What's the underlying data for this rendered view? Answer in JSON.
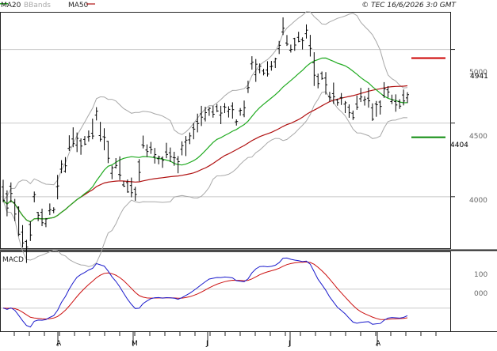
{
  "legend": [
    {
      "label": "MA20",
      "color": "#1faa1f"
    },
    {
      "label": "BBands",
      "color": "#a8a8a8"
    },
    {
      "label": "MA50",
      "color": "#b01010"
    }
  ],
  "copyright": "© TEC 16/6/2026 3:0 GMT",
  "chart_data": [
    {
      "type": "line",
      "title": "",
      "x_months": [
        "A",
        "M",
        "J",
        "J",
        "A"
      ],
      "y_ticks": [
        4000,
        4500,
        5000
      ],
      "y_tick_labels": [
        "4000",
        "4500",
        "5000"
      ],
      "ylim": [
        3650,
        5250
      ],
      "grid": true,
      "markers": [
        {
          "label": "4941",
          "value": 4941,
          "color": "#cc0000"
        },
        {
          "label": "4404",
          "value": 4404,
          "color": "#0a8a0a"
        }
      ],
      "price_bars": [
        [
          4066,
          4115,
          3963,
          3976
        ],
        [
          4020,
          4043,
          3867,
          3923
        ],
        [
          4071,
          4097,
          3961,
          4022
        ],
        [
          3960,
          3985,
          3834,
          3882
        ],
        [
          3929,
          3934,
          3732,
          3745
        ],
        [
          3759,
          3807,
          3655,
          3686
        ],
        [
          3696,
          3707,
          3550,
          3659
        ],
        [
          3811,
          3833,
          3699,
          3740
        ],
        [
          4000,
          4035,
          3962,
          4014
        ],
        [
          3893,
          3897,
          3834,
          3874
        ],
        [
          3894,
          3919,
          3800,
          3823
        ],
        [
          3817,
          3855,
          3793,
          3849
        ],
        [
          3904,
          3954,
          3875,
          3912
        ],
        [
          3905,
          3928,
          3888,
          3913
        ],
        [
          4068,
          4148,
          3982,
          4073
        ],
        [
          4187,
          4248,
          4159,
          4221
        ],
        [
          4173,
          4269,
          4163,
          4210
        ],
        [
          4328,
          4417,
          4311,
          4337
        ],
        [
          4392,
          4471,
          4336,
          4360
        ],
        [
          4350,
          4436,
          4303,
          4396
        ],
        [
          4380,
          4396,
          4285,
          4344
        ],
        [
          4389,
          4412,
          4350,
          4357
        ],
        [
          4406,
          4450,
          4374,
          4410
        ],
        [
          4431,
          4530,
          4390,
          4412
        ],
        [
          4554,
          4608,
          4518,
          4581
        ],
        [
          4415,
          4508,
          4374,
          4390
        ],
        [
          4407,
          4465,
          4315,
          4403
        ],
        [
          4376,
          4379,
          4228,
          4261
        ],
        [
          4159,
          4212,
          4119,
          4196
        ],
        [
          4200,
          4262,
          4191,
          4212
        ],
        [
          4151,
          4274,
          4113,
          4146
        ],
        [
          4080,
          4107,
          4067,
          4071
        ],
        [
          4096,
          4117,
          4027,
          4032
        ],
        [
          4076,
          4130,
          3996,
          4027
        ],
        [
          4051,
          4067,
          3972,
          4015
        ],
        [
          4236,
          4255,
          4105,
          4165
        ],
        [
          4352,
          4415,
          4328,
          4345
        ],
        [
          4317,
          4355,
          4270,
          4307
        ],
        [
          4336,
          4372,
          4291,
          4319
        ],
        [
          4272,
          4331,
          4225,
          4286
        ],
        [
          4258,
          4279,
          4220,
          4269
        ],
        [
          4262,
          4274,
          4196,
          4247
        ],
        [
          4304,
          4366,
          4261,
          4287
        ],
        [
          4298,
          4334,
          4235,
          4272
        ],
        [
          4266,
          4305,
          4210,
          4264
        ],
        [
          4256,
          4276,
          4159,
          4238
        ],
        [
          4322,
          4376,
          4281,
          4347
        ],
        [
          4371,
          4412,
          4276,
          4384
        ],
        [
          4386,
          4436,
          4357,
          4413
        ],
        [
          4468,
          4501,
          4390,
          4459
        ],
        [
          4512,
          4564,
          4437,
          4497
        ],
        [
          4563,
          4617,
          4480,
          4540
        ],
        [
          4528,
          4611,
          4511,
          4571
        ],
        [
          4590,
          4609,
          4549,
          4600
        ],
        [
          4575,
          4617,
          4537,
          4560
        ],
        [
          4612,
          4630,
          4575,
          4582
        ],
        [
          4554,
          4617,
          4493,
          4568
        ],
        [
          4612,
          4636,
          4568,
          4608
        ],
        [
          4580,
          4614,
          4538,
          4593
        ],
        [
          4616,
          4641,
          4530,
          4591
        ],
        [
          4508,
          4525,
          4483,
          4511
        ],
        [
          4583,
          4602,
          4550,
          4587
        ],
        [
          4557,
          4653,
          4540,
          4604
        ],
        [
          4736,
          4788,
          4704,
          4741
        ],
        [
          4902,
          4954,
          4863,
          4913
        ],
        [
          4828,
          4935,
          4780,
          4900
        ],
        [
          4864,
          4905,
          4838,
          4886
        ],
        [
          4854,
          4869,
          4824,
          4839
        ],
        [
          4860,
          4920,
          4816,
          4833
        ],
        [
          4883,
          4922,
          4856,
          4886
        ],
        [
          4916,
          4944,
          4874,
          4936
        ],
        [
          5005,
          5058,
          4969,
          5028
        ],
        [
          5119,
          5218,
          5098,
          5145
        ],
        [
          5044,
          5098,
          5024,
          5036
        ],
        [
          4995,
          5033,
          4979,
          5000
        ],
        [
          5074,
          5079,
          4991,
          5030
        ],
        [
          5082,
          5120,
          5049,
          5055
        ],
        [
          5067,
          5082,
          5000,
          5059
        ],
        [
          5107,
          5170,
          5074,
          5131
        ],
        [
          5026,
          5099,
          4952,
          5007
        ],
        [
          4909,
          4981,
          4752,
          4825
        ],
        [
          4817,
          4836,
          4736,
          4768
        ],
        [
          4837,
          4850,
          4794,
          4803
        ],
        [
          4806,
          4846,
          4694,
          4760
        ],
        [
          4679,
          4712,
          4646,
          4675
        ],
        [
          4700,
          4775,
          4630,
          4679
        ],
        [
          4657,
          4666,
          4618,
          4639
        ],
        [
          4674,
          4704,
          4623,
          4671
        ],
        [
          4629,
          4650,
          4568,
          4638
        ],
        [
          4608,
          4627,
          4536,
          4570
        ],
        [
          4567,
          4585,
          4521,
          4537
        ],
        [
          4629,
          4687,
          4590,
          4608
        ],
        [
          4665,
          4739,
          4643,
          4677
        ],
        [
          4654,
          4683,
          4619,
          4661
        ],
        [
          4669,
          4740,
          4605,
          4651
        ],
        [
          4603,
          4634,
          4515,
          4526
        ],
        [
          4630,
          4650,
          4543,
          4625
        ],
        [
          4643,
          4654,
          4558,
          4613
        ],
        [
          4688,
          4778,
          4671,
          4732
        ],
        [
          4726,
          4751,
          4672,
          4711
        ],
        [
          4646,
          4693,
          4629,
          4656
        ],
        [
          4646,
          4695,
          4577,
          4623
        ],
        [
          4647,
          4662,
          4596,
          4615
        ],
        [
          4691,
          4728,
          4620,
          4650
        ],
        [
          4671,
          4710,
          4636,
          4693
        ]
      ]
    },
    {
      "type": "line",
      "title": "MACD",
      "y_tick_labels": [
        "100",
        "000"
      ],
      "grid": true
    }
  ]
}
